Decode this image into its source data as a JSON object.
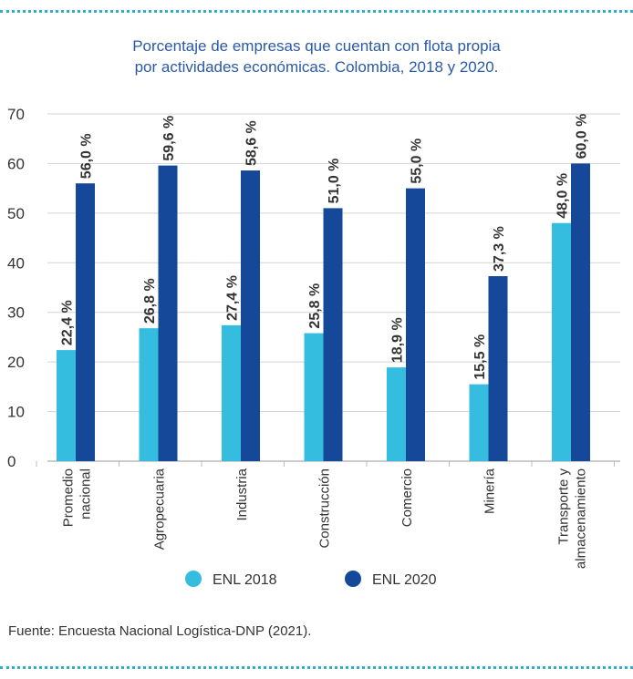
{
  "title_lines": [
    "Porcentaje de empresas que cuentan con flota propia",
    "por actividades económicas. Colombia, 2018 y 2020."
  ],
  "source": "Fuente: Encuesta Nacional Logística-DNP (2021).",
  "colors": {
    "series_2018": "#35bddf",
    "series_2020": "#16489a",
    "title": "#2a5aa6",
    "dots": "#2ab1c8"
  },
  "chart_data": {
    "type": "bar",
    "title": "Porcentaje de empresas que cuentan con flota propia por actividades económicas. Colombia, 2018 y 2020.",
    "categories": [
      [
        "Promedio",
        "nacional"
      ],
      [
        "Agropecuaria"
      ],
      [
        "Industria"
      ],
      [
        "Construcción"
      ],
      [
        "Comercio"
      ],
      [
        "Minería"
      ],
      [
        "Transporte y",
        "almacenamiento"
      ]
    ],
    "series": [
      {
        "name": "ENL 2018",
        "values": [
          22.4,
          26.8,
          27.4,
          25.8,
          18.9,
          15.5,
          48.0
        ],
        "labels": [
          "22,4 %",
          "26,8 %",
          "27,4 %",
          "25,8 %",
          "18,9 %",
          "15,5 %",
          "48,0 %"
        ]
      },
      {
        "name": "ENL 2020",
        "values": [
          56.0,
          59.6,
          58.6,
          51.0,
          55.0,
          37.3,
          60.0
        ],
        "labels": [
          "56,0 %",
          "59,6 %",
          "58,6 %",
          "51,0 %",
          "55,0 %",
          "37,3 %",
          "60,0 %"
        ]
      }
    ],
    "yticks": [
      0,
      10,
      20,
      30,
      40,
      50,
      60,
      70
    ],
    "ylim": [
      0,
      70
    ],
    "grid": true,
    "legend": "bottom"
  }
}
